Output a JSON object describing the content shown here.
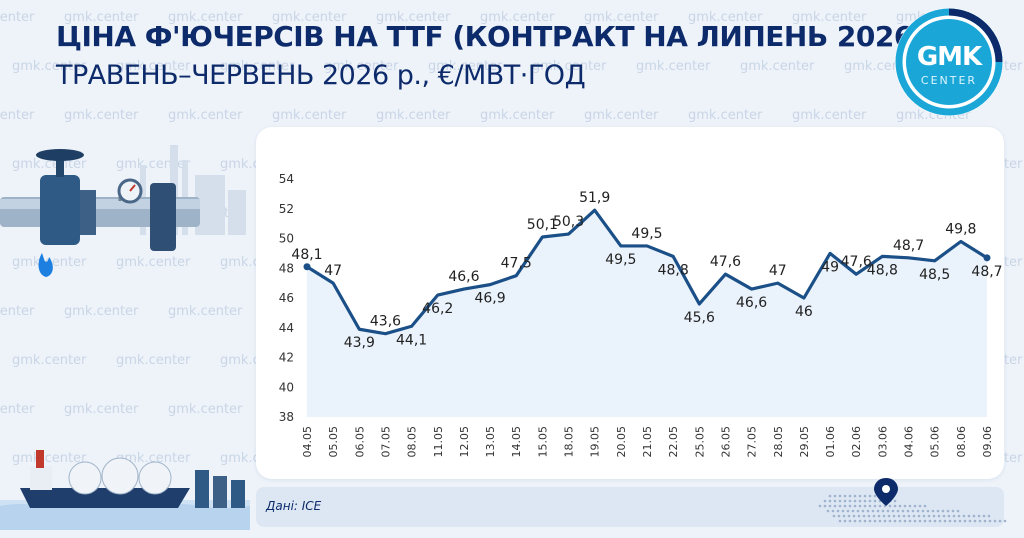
{
  "header": {
    "title_line1": "ЦІНА Ф'ЮЧЕРСІВ НА TTF (КОНТРАКТ НА ЛИПЕНЬ 2026),",
    "title_line2": "ТРАВЕНЬ–ЧЕРВЕНЬ 2026 р., €/МВТ·ГОД"
  },
  "logo": {
    "line1": "GMK",
    "line2": "CENTER"
  },
  "watermark_text": "gmk.center",
  "source": "Дані: ICE",
  "colors": {
    "line": "#1a4f87",
    "title": "#0d2b6b",
    "accent": "#1aa7d8",
    "area": "#d9e7f7"
  },
  "icons": [
    "gas-valve-pipe-icon",
    "flame-icon",
    "lng-ship-icon",
    "map-pin-icon"
  ],
  "chart_data": {
    "type": "line",
    "categories": [
      "04.05",
      "05.05",
      "06.05",
      "07.05",
      "08.05",
      "11.05",
      "12.05",
      "13.05",
      "14.05",
      "15.05",
      "18.05",
      "19.05",
      "20.05",
      "21.05",
      "22.05",
      "25.05",
      "26.05",
      "27.05",
      "28.05",
      "29.05",
      "01.06",
      "02.06",
      "03.06",
      "04.06",
      "05.06",
      "08.06",
      "09.06"
    ],
    "values": [
      48.1,
      47,
      43.9,
      43.6,
      44.1,
      46.2,
      46.6,
      46.9,
      47.5,
      50.1,
      50.3,
      51.9,
      49.5,
      49.5,
      48.8,
      45.6,
      47.6,
      46.6,
      47,
      46,
      49,
      47.6,
      48.8,
      48.7,
      48.5,
      49.8,
      48.7
    ],
    "labels": [
      "48,1",
      "47",
      "43,9",
      "43,6",
      "44,1",
      "46,2",
      "46,6",
      "46,9",
      "47,5",
      "50,1",
      "50,3",
      "51,9",
      "49,5",
      "49,5",
      "48,8",
      "45,6",
      "47,6",
      "46,6",
      "47",
      "46",
      "49",
      "47,6",
      "48,8",
      "48,7",
      "48,5",
      "49,8",
      "48,7"
    ],
    "label_pos": [
      "above",
      "above",
      "below",
      "above",
      "below",
      "below",
      "above",
      "below",
      "above",
      "above",
      "above",
      "above",
      "below",
      "above",
      "below",
      "below",
      "above",
      "below",
      "above",
      "below",
      "below",
      "above",
      "below",
      "above",
      "below",
      "above",
      "below"
    ],
    "yticks": [
      38,
      40,
      42,
      44,
      46,
      48,
      50,
      52,
      54
    ],
    "ylim": [
      38,
      54
    ],
    "grid": false,
    "xlabel": "",
    "ylabel": ""
  }
}
